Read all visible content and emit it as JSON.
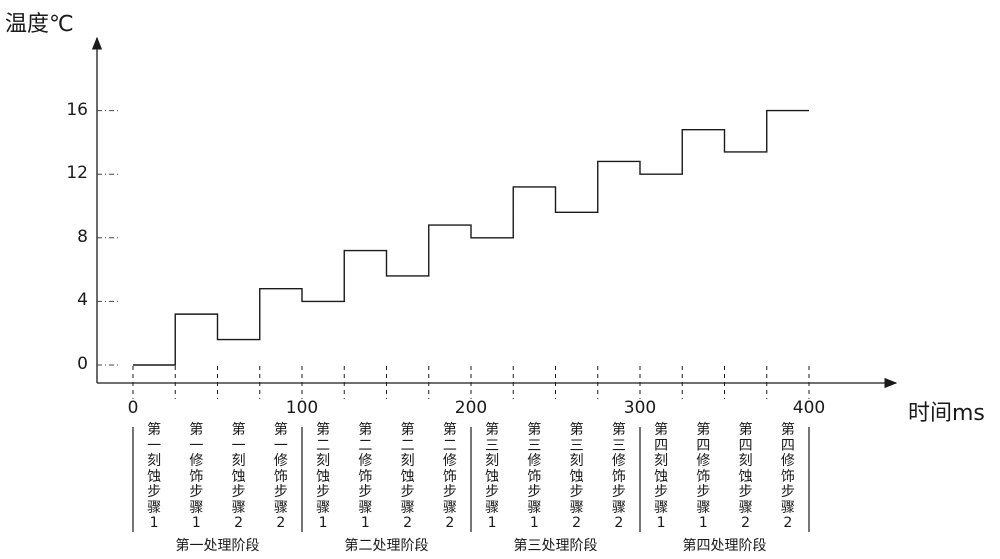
{
  "chart_data": {
    "type": "line",
    "ylabel": "温度℃",
    "xlabel": "时间ms",
    "xlim": [
      0,
      400
    ],
    "ylim": [
      0,
      16
    ],
    "x_ticks": [
      0,
      100,
      200,
      300,
      400
    ],
    "y_ticks": [
      0,
      4,
      8,
      12,
      16
    ],
    "series": [
      {
        "step_boundaries_x": [
          0,
          25,
          50,
          75,
          100,
          125,
          150,
          175,
          200,
          225,
          250,
          275,
          300,
          325,
          350,
          375,
          400
        ],
        "values": [
          0,
          3.2,
          1.6,
          4.8,
          4.0,
          7.2,
          5.6,
          8.8,
          8.0,
          11.2,
          9.6,
          12.8,
          12.0,
          14.8,
          13.4,
          16.0
        ]
      }
    ],
    "steps": [
      "第一刻蚀步骤1",
      "第一修饰步骤1",
      "第一刻蚀步骤2",
      "第一修饰步骤2",
      "第二刻蚀步骤1",
      "第二修饰步骤1",
      "第二刻蚀步骤2",
      "第二修饰步骤2",
      "第三刻蚀步骤1",
      "第三修饰步骤1",
      "第三刻蚀步骤2",
      "第三修饰步骤2",
      "第四刻蚀步骤1",
      "第四修饰步骤1",
      "第四刻蚀步骤2",
      "第四修饰步骤2"
    ],
    "phases": [
      "第一处理阶段",
      "第二处理阶段",
      "第三处理阶段",
      "第四处理阶段"
    ],
    "grid": false,
    "legend": "none"
  }
}
